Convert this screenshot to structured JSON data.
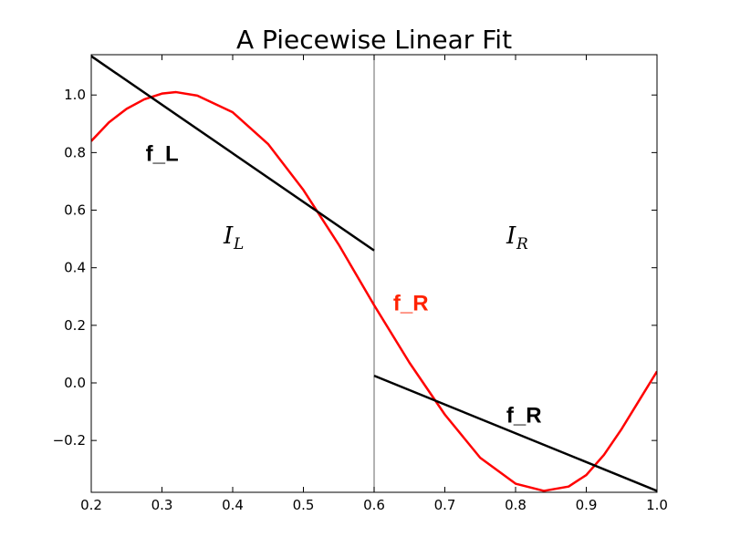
{
  "chart_data": {
    "type": "line",
    "title": "A Piecewise Linear Fit",
    "xlabel": "",
    "ylabel": "",
    "xlim": [
      0.2,
      1.0
    ],
    "ylim": [
      -0.38,
      1.14
    ],
    "x_ticks": [
      "0.2",
      "0.3",
      "0.4",
      "0.5",
      "0.6",
      "0.7",
      "0.8",
      "0.9",
      "1.0"
    ],
    "y_ticks": [
      "−0.2",
      "0.0",
      "0.2",
      "0.4",
      "0.6",
      "0.8",
      "1.0"
    ],
    "grid": false,
    "series": [
      {
        "color": "#ff0000",
        "points": [
          [
            0.2,
            0.84
          ],
          [
            0.225,
            0.905
          ],
          [
            0.25,
            0.952
          ],
          [
            0.275,
            0.985
          ],
          [
            0.3,
            1.005
          ],
          [
            0.32,
            1.01
          ],
          [
            0.35,
            0.998
          ],
          [
            0.4,
            0.94
          ],
          [
            0.45,
            0.83
          ],
          [
            0.5,
            0.67
          ],
          [
            0.55,
            0.48
          ],
          [
            0.6,
            0.27
          ],
          [
            0.65,
            0.07
          ],
          [
            0.7,
            -0.11
          ],
          [
            0.75,
            -0.26
          ],
          [
            0.8,
            -0.35
          ],
          [
            0.84,
            -0.375
          ],
          [
            0.875,
            -0.36
          ],
          [
            0.9,
            -0.32
          ],
          [
            0.925,
            -0.25
          ],
          [
            0.95,
            -0.16
          ],
          [
            0.975,
            -0.06
          ],
          [
            1.0,
            0.04
          ]
        ]
      },
      {
        "color": "#000000",
        "points": [
          [
            0.2,
            1.135
          ],
          [
            0.6,
            0.46
          ]
        ]
      },
      {
        "color": "#000000",
        "points": [
          [
            0.6,
            0.025
          ],
          [
            1.0,
            -0.375
          ]
        ]
      }
    ],
    "vline": {
      "x": 0.6,
      "color": "#808080"
    },
    "annotations": [
      {
        "text": "f_L",
        "x": 0.277,
        "y": 0.8,
        "color": "#000000",
        "style": "bold"
      },
      {
        "text": "f_R",
        "x": 0.627,
        "y": 0.28,
        "color": "#ff2200",
        "style": "bold"
      },
      {
        "text": "f_R",
        "x": 0.787,
        "y": -0.11,
        "color": "#000000",
        "style": "bold"
      }
    ],
    "region_labels": [
      {
        "main": "I",
        "sub": "L",
        "x": 0.4,
        "y": 0.5
      },
      {
        "main": "I",
        "sub": "R",
        "x": 0.8,
        "y": 0.5
      }
    ]
  }
}
